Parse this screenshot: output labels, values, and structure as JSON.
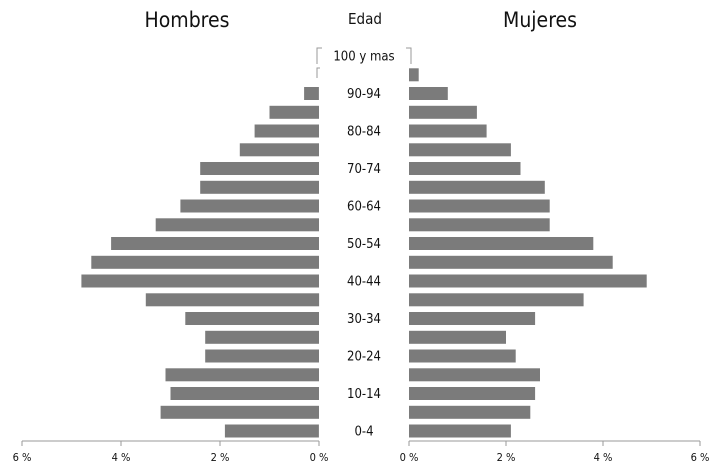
{
  "chart_data": {
    "type": "bar",
    "orientation": "horizontal",
    "layout": "population-pyramid",
    "axis_title": "Edad",
    "age_groups": [
      "0-4",
      "5-9",
      "10-14",
      "15-19",
      "20-24",
      "25-29",
      "30-34",
      "35-39",
      "40-44",
      "45-49",
      "50-54",
      "55-59",
      "60-64",
      "65-69",
      "70-74",
      "75-79",
      "80-84",
      "85-89",
      "90-94",
      "95-99",
      "100 y mas"
    ],
    "age_labels_shown": [
      "0-4",
      "",
      "10-14",
      "",
      "20-24",
      "",
      "30-34",
      "",
      "40-44",
      "",
      "50-54",
      "",
      "60-64",
      "",
      "70-74",
      "",
      "80-84",
      "",
      "90-94",
      "",
      "100 y mas"
    ],
    "series": [
      {
        "name": "Hombres",
        "side": "left",
        "values": [
          1.9,
          3.2,
          3.0,
          3.1,
          2.3,
          2.3,
          2.7,
          3.5,
          4.8,
          4.6,
          4.2,
          3.3,
          2.8,
          2.4,
          2.4,
          1.6,
          1.3,
          1.0,
          0.3,
          0.0,
          0.0
        ]
      },
      {
        "name": "Mujeres",
        "side": "right",
        "values": [
          2.1,
          2.5,
          2.6,
          2.7,
          2.2,
          2.0,
          2.6,
          3.6,
          4.9,
          4.2,
          3.8,
          2.9,
          2.9,
          2.8,
          2.3,
          2.1,
          1.6,
          1.4,
          0.8,
          0.2,
          0.0
        ]
      }
    ],
    "x_ticks": {
      "left": [
        "6 %",
        "4 %",
        "2 %",
        "0 %"
      ],
      "right": [
        "0 %",
        "2 %",
        "4 %",
        "6 %"
      ],
      "tick_values": [
        6,
        4,
        2,
        0
      ]
    },
    "xlim": [
      0,
      6
    ],
    "unit": "%",
    "grid": false,
    "legend": "none"
  }
}
